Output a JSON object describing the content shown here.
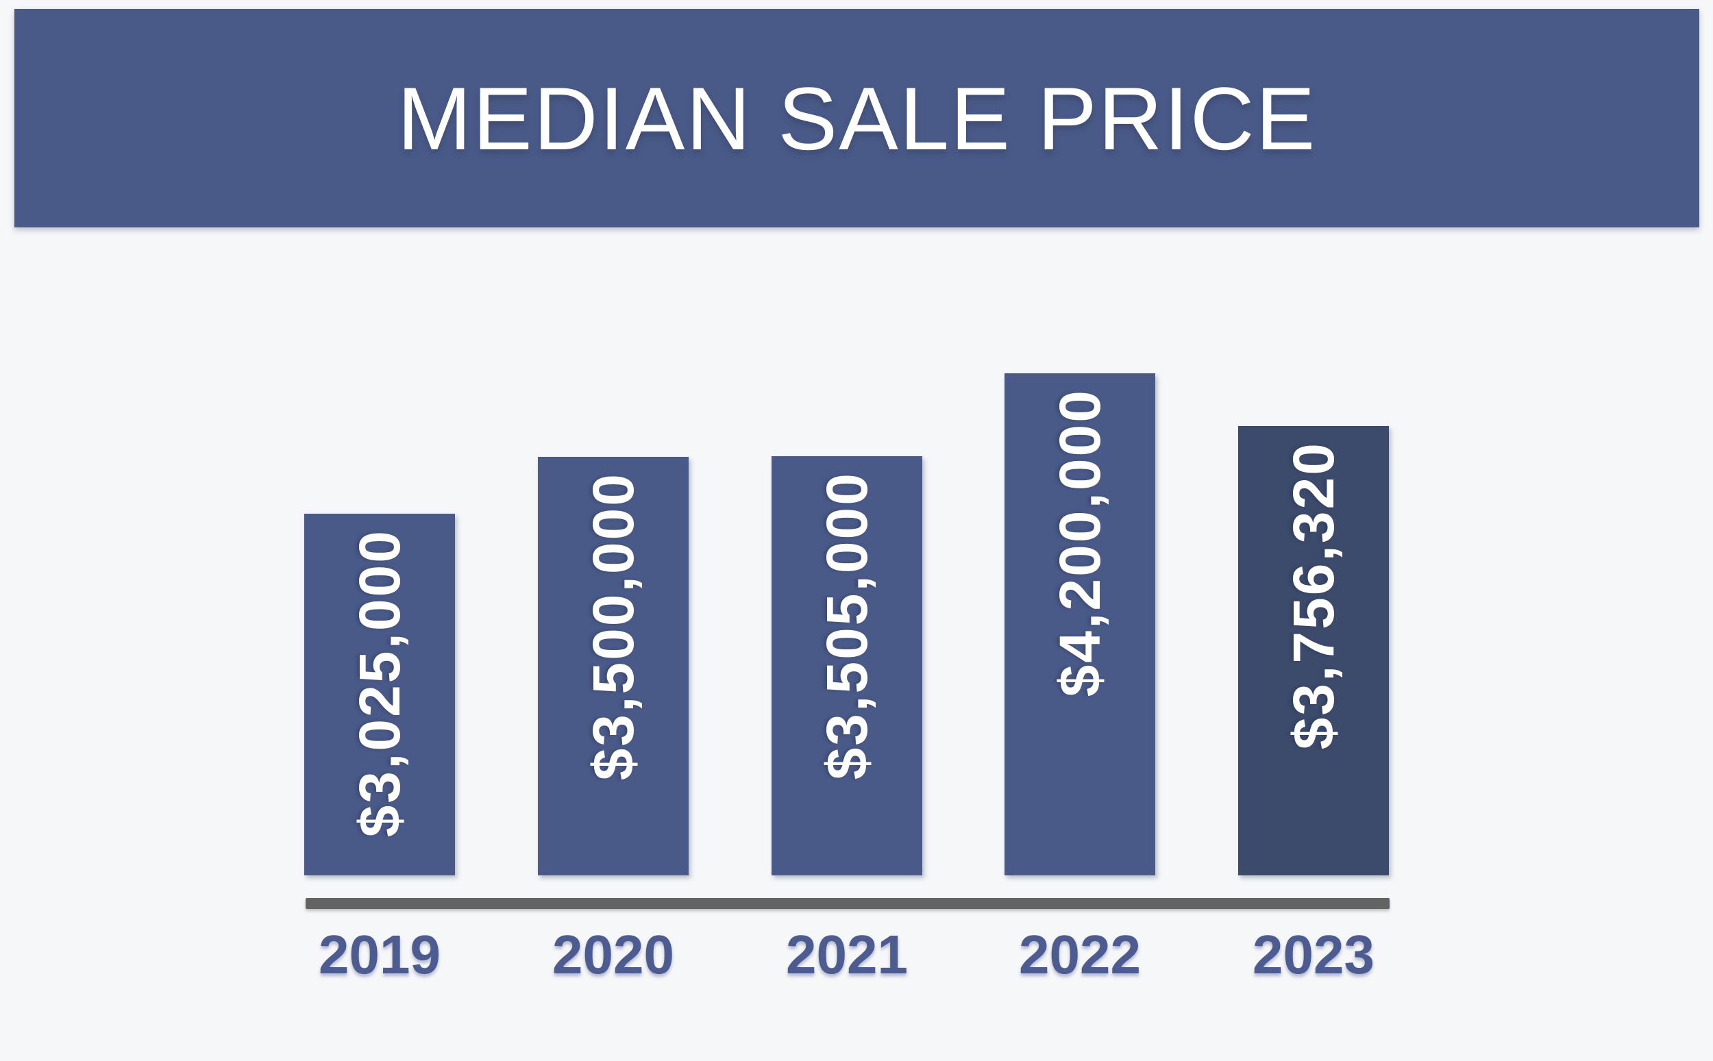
{
  "header": {
    "title": "MEDIAN SALE PRICE"
  },
  "colors": {
    "background": "#f6f7f9",
    "header_bg": "#4a5a88",
    "title_text": "#ffffff",
    "bar_label_text": "#ffffff",
    "axis_line": "#636363",
    "year_label_text": "#4c5c90"
  },
  "chart_data": {
    "type": "bar",
    "title": "MEDIAN SALE PRICE",
    "categories": [
      "2019",
      "2020",
      "2021",
      "2022",
      "2023"
    ],
    "values": [
      3025000,
      3500000,
      3505000,
      4200000,
      3756320
    ],
    "value_labels": [
      "$3,025,000",
      "$3,500,000",
      "$3,505,000",
      "$4,200,000",
      "$3,756,320"
    ],
    "bar_colors": [
      "#4a5a88",
      "#4a5a88",
      "#4a5a88",
      "#4a5a88",
      "#3c4a6c"
    ],
    "xlabel": "",
    "ylabel": "",
    "ylim": [
      0,
      4200000
    ],
    "grid": false,
    "legend": false,
    "value_label_orientation": "vertical-bottom-up",
    "baseline_axis": true
  }
}
